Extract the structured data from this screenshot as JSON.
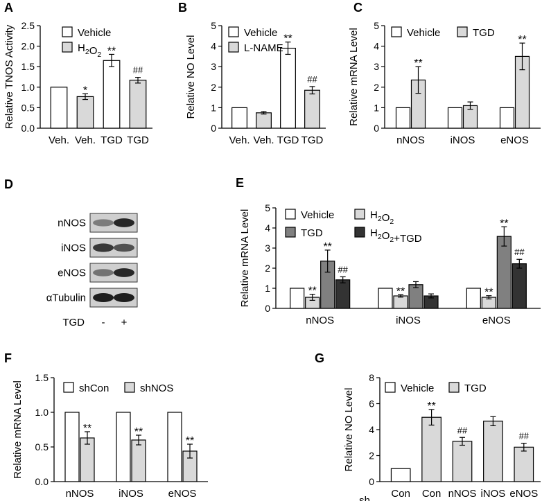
{
  "colors": {
    "white": "#ffffff",
    "light_gray": "#d9d9d9",
    "dark_gray": "#808080",
    "black_fill": "#333333",
    "stroke": "#000000"
  },
  "chart_data": [
    {
      "id": "A",
      "panel_label": "A",
      "type": "bar",
      "ylabel": "Relative TNOS Activity",
      "ylim": [
        0,
        2.5
      ],
      "yticks": [
        "0.0",
        "0.5",
        "1.0",
        "1.5",
        "2.0",
        "2.5"
      ],
      "legend": [
        {
          "label": "Vehicle",
          "color": "#ffffff"
        },
        {
          "label": "H2O2",
          "color": "#d9d9d9",
          "sub": true
        }
      ],
      "groups": [
        {
          "label": "Veh."
        },
        {
          "label": "Veh."
        },
        {
          "label": "TGD"
        },
        {
          "label": "TGD"
        }
      ],
      "bars": [
        {
          "value": 1.0,
          "err": 0,
          "color": "#ffffff",
          "mark": ""
        },
        {
          "value": 0.77,
          "err": 0.07,
          "color": "#d9d9d9",
          "mark": "*"
        },
        {
          "value": 1.65,
          "err": 0.15,
          "color": "#ffffff",
          "mark": "**"
        },
        {
          "value": 1.17,
          "err": 0.07,
          "color": "#d9d9d9",
          "mark": "##"
        }
      ]
    },
    {
      "id": "B",
      "panel_label": "B",
      "type": "bar",
      "ylabel": "Relative NO Level",
      "ylim": [
        0,
        5
      ],
      "yticks": [
        "0",
        "1",
        "2",
        "3",
        "4",
        "5"
      ],
      "legend": [
        {
          "label": "Vehicle",
          "color": "#ffffff"
        },
        {
          "label": "L-NAME",
          "color": "#d9d9d9"
        }
      ],
      "groups": [
        {
          "label": "Veh."
        },
        {
          "label": "Veh."
        },
        {
          "label": "TGD"
        },
        {
          "label": "TGD"
        }
      ],
      "bars": [
        {
          "value": 1.0,
          "err": 0,
          "color": "#ffffff",
          "mark": ""
        },
        {
          "value": 0.75,
          "err": 0.06,
          "color": "#d9d9d9",
          "mark": ""
        },
        {
          "value": 3.9,
          "err": 0.3,
          "color": "#ffffff",
          "mark": "**"
        },
        {
          "value": 1.85,
          "err": 0.18,
          "color": "#d9d9d9",
          "mark": "##"
        }
      ]
    },
    {
      "id": "C",
      "panel_label": "C",
      "type": "bar",
      "ylabel": "Relative mRNA Level",
      "ylim": [
        0,
        5
      ],
      "yticks": [
        "0",
        "1",
        "2",
        "3",
        "4",
        "5"
      ],
      "legend": [
        {
          "label": "Vehicle",
          "color": "#ffffff"
        },
        {
          "label": "TGD",
          "color": "#d9d9d9"
        }
      ],
      "categories": [
        "nNOS",
        "iNOS",
        "eNOS"
      ],
      "series": [
        {
          "name": "Vehicle",
          "color": "#ffffff",
          "values": [
            1,
            1,
            1
          ],
          "err": [
            0,
            0,
            0
          ],
          "marks": [
            "",
            "",
            ""
          ]
        },
        {
          "name": "TGD",
          "color": "#d9d9d9",
          "values": [
            2.35,
            1.1,
            3.5
          ],
          "err": [
            0.65,
            0.18,
            0.65
          ],
          "marks": [
            "**",
            "",
            "**"
          ]
        }
      ]
    },
    {
      "id": "E",
      "panel_label": "E",
      "type": "bar",
      "ylabel": "Relative mRNA Level",
      "ylim": [
        0,
        5
      ],
      "yticks": [
        "0",
        "1",
        "2",
        "3",
        "4",
        "5"
      ],
      "legend": [
        {
          "label": "Vehicle",
          "color": "#ffffff"
        },
        {
          "label": "H2O2",
          "color": "#d9d9d9",
          "sub": true
        },
        {
          "label": "TGD",
          "color": "#808080"
        },
        {
          "label": "H2O2+TGD",
          "color": "#333333",
          "sub": true
        }
      ],
      "categories": [
        "nNOS",
        "iNOS",
        "eNOS"
      ],
      "series": [
        {
          "name": "Vehicle",
          "color": "#ffffff",
          "values": [
            1,
            1,
            1
          ],
          "err": [
            0,
            0,
            0
          ],
          "marks": [
            "",
            "",
            ""
          ]
        },
        {
          "name": "H2O2",
          "color": "#d9d9d9",
          "values": [
            0.55,
            0.62,
            0.55
          ],
          "err": [
            0.15,
            0.06,
            0.08
          ],
          "marks": [
            "**",
            "**",
            "**"
          ]
        },
        {
          "name": "TGD",
          "color": "#808080",
          "values": [
            2.35,
            1.18,
            3.58
          ],
          "err": [
            0.55,
            0.15,
            0.48
          ],
          "marks": [
            "**",
            "",
            "**"
          ]
        },
        {
          "name": "H2O2+TGD",
          "color": "#333333",
          "values": [
            1.42,
            0.62,
            2.22
          ],
          "err": [
            0.15,
            0.1,
            0.22
          ],
          "marks": [
            "##",
            "",
            "##"
          ]
        }
      ]
    },
    {
      "id": "F",
      "panel_label": "F",
      "type": "bar",
      "ylabel": "Relative mRNA Level",
      "ylim": [
        0,
        1.5
      ],
      "yticks": [
        "0.0",
        "0.5",
        "1.0",
        "1.5"
      ],
      "legend": [
        {
          "label": "shCon",
          "color": "#ffffff"
        },
        {
          "label": "shNOS",
          "color": "#d9d9d9"
        }
      ],
      "categories": [
        "nNOS",
        "iNOS",
        "eNOS"
      ],
      "series": [
        {
          "name": "shCon",
          "color": "#ffffff",
          "values": [
            1,
            1,
            1
          ],
          "err": [
            0,
            0,
            0
          ],
          "marks": [
            "",
            "",
            ""
          ]
        },
        {
          "name": "shNOS",
          "color": "#d9d9d9",
          "values": [
            0.63,
            0.6,
            0.44
          ],
          "err": [
            0.09,
            0.07,
            0.1
          ],
          "marks": [
            "**",
            "**",
            "**"
          ]
        }
      ]
    },
    {
      "id": "G",
      "panel_label": "G",
      "type": "bar",
      "ylabel": "Relative NO Level",
      "ylim": [
        0,
        8
      ],
      "yticks": [
        "0",
        "2",
        "4",
        "6",
        "8"
      ],
      "legend": [
        {
          "label": "Vehicle",
          "color": "#ffffff"
        },
        {
          "label": "TGD",
          "color": "#d9d9d9"
        }
      ],
      "xprefix": "sh",
      "groups": [
        {
          "label": "Con"
        },
        {
          "label": "Con"
        },
        {
          "label": "nNOS"
        },
        {
          "label": "iNOS"
        },
        {
          "label": "eNOS"
        }
      ],
      "bars": [
        {
          "value": 1.0,
          "err": 0,
          "color": "#ffffff",
          "mark": ""
        },
        {
          "value": 4.95,
          "err": 0.6,
          "color": "#d9d9d9",
          "mark": "**"
        },
        {
          "value": 3.1,
          "err": 0.3,
          "color": "#d9d9d9",
          "mark": "##"
        },
        {
          "value": 4.65,
          "err": 0.35,
          "color": "#d9d9d9",
          "mark": ""
        },
        {
          "value": 2.65,
          "err": 0.3,
          "color": "#d9d9d9",
          "mark": "##"
        }
      ]
    }
  ],
  "blot": {
    "panel_label": "D",
    "rows": [
      {
        "label": "nNOS",
        "intensity": [
          0.45,
          0.95
        ]
      },
      {
        "label": "iNOS",
        "intensity": [
          0.85,
          0.7
        ]
      },
      {
        "label": "eNOS",
        "intensity": [
          0.5,
          0.95
        ]
      },
      {
        "label": "αTubulin",
        "intensity": [
          1.0,
          1.0
        ]
      }
    ],
    "treatment_label": "TGD",
    "lanes": [
      "-",
      "+"
    ]
  }
}
